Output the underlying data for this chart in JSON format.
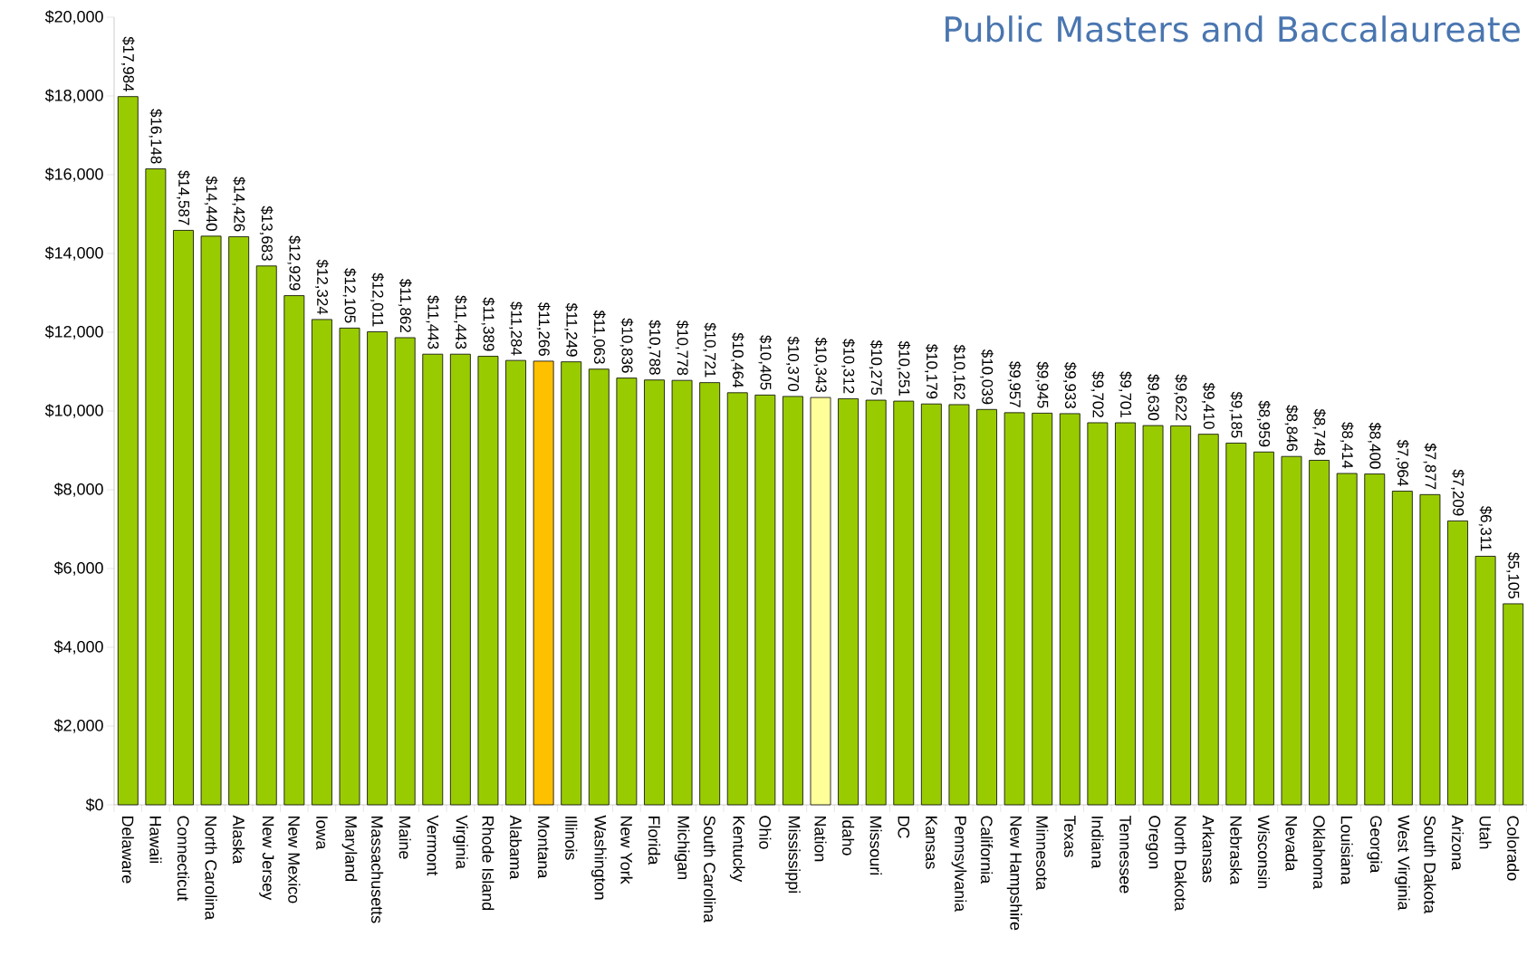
{
  "chart_data": {
    "type": "bar",
    "subtitle": "Public Masters and Baccalaureate",
    "categories": [
      "Delaware",
      "Hawaii",
      "Connecticut",
      "North Carolina",
      "Alaska",
      "New Jersey",
      "New Mexico",
      "Iowa",
      "Maryland",
      "Massachusetts",
      "Maine",
      "Vermont",
      "Virginia",
      "Rhode Island",
      "Alabama",
      "Montana",
      "Illinois",
      "Washington",
      "New York",
      "Florida",
      "Michigan",
      "South Carolina",
      "Kentucky",
      "Ohio",
      "Mississippi",
      "Nation",
      "Idaho",
      "Missouri",
      "DC",
      "Kansas",
      "Pennsylvania",
      "California",
      "New Hampshire",
      "Minnesota",
      "Texas",
      "Indiana",
      "Tennessee",
      "Oregon",
      "North Dakota",
      "Arkansas",
      "Nebraska",
      "Wisconsin",
      "Nevada",
      "Oklahoma",
      "Louisiana",
      "Georgia",
      "West Virginia",
      "South Dakota",
      "Arizona",
      "Utah",
      "Colorado"
    ],
    "values": [
      17984,
      16148,
      14587,
      14440,
      14426,
      13683,
      12929,
      12324,
      12105,
      12011,
      11862,
      11443,
      11443,
      11389,
      11284,
      11266,
      11249,
      11063,
      10836,
      10788,
      10778,
      10721,
      10464,
      10405,
      10370,
      10343,
      10312,
      10275,
      10251,
      10179,
      10162,
      10039,
      9957,
      9945,
      9933,
      9702,
      9701,
      9630,
      9622,
      9410,
      9185,
      8959,
      8846,
      8748,
      8414,
      8400,
      7964,
      7877,
      7209,
      6311,
      5105
    ],
    "value_labels": [
      "$17,984",
      "$16,148",
      "$14,587",
      "$14,440",
      "$14,426",
      "$13,683",
      "$12,929",
      "$12,324",
      "$12,105",
      "$12,011",
      "$11,862",
      "$11,443",
      "$11,443",
      "$11,389",
      "$11,284",
      "$11,266",
      "$11,249",
      "$11,063",
      "$10,836",
      "$10,788",
      "$10,778",
      "$10,721",
      "$10,464",
      "$10,405",
      "$10,370",
      "$10,343",
      "$10,312",
      "$10,275",
      "$10,251",
      "$10,179",
      "$10,162",
      "$10,039",
      "$9,957",
      "$9,945",
      "$9,933",
      "$9,702",
      "$9,701",
      "$9,630",
      "$9,622",
      "$9,410",
      "$9,185",
      "$8,959",
      "$8,846",
      "$8,748",
      "$8,414",
      "$8,400",
      "$7,964",
      "$7,877",
      "$7,209",
      "$6,311",
      "$5,105"
    ],
    "colors": [
      "#99cc00",
      "#99cc00",
      "#99cc00",
      "#99cc00",
      "#99cc00",
      "#99cc00",
      "#99cc00",
      "#99cc00",
      "#99cc00",
      "#99cc00",
      "#99cc00",
      "#99cc00",
      "#99cc00",
      "#99cc00",
      "#99cc00",
      "#ffc000",
      "#99cc00",
      "#99cc00",
      "#99cc00",
      "#99cc00",
      "#99cc00",
      "#99cc00",
      "#99cc00",
      "#99cc00",
      "#99cc00",
      "#ffff99",
      "#99cc00",
      "#99cc00",
      "#99cc00",
      "#99cc00",
      "#99cc00",
      "#99cc00",
      "#99cc00",
      "#99cc00",
      "#99cc00",
      "#99cc00",
      "#99cc00",
      "#99cc00",
      "#99cc00",
      "#99cc00",
      "#99cc00",
      "#99cc00",
      "#99cc00",
      "#99cc00",
      "#99cc00",
      "#99cc00",
      "#99cc00",
      "#99cc00",
      "#99cc00",
      "#99cc00",
      "#99cc00"
    ],
    "ylim": [
      0,
      20000
    ],
    "yticks": [
      {
        "value": 0,
        "label": "$0"
      },
      {
        "value": 2000,
        "label": "$2,000"
      },
      {
        "value": 4000,
        "label": "$4,000"
      },
      {
        "value": 6000,
        "label": "$6,000"
      },
      {
        "value": 8000,
        "label": "$8,000"
      },
      {
        "value": 10000,
        "label": "$10,000"
      },
      {
        "value": 12000,
        "label": "$12,000"
      },
      {
        "value": 14000,
        "label": "$14,000"
      },
      {
        "value": 16000,
        "label": "$16,000"
      },
      {
        "value": 18000,
        "label": "$18,000"
      },
      {
        "value": 20000,
        "label": "$20,000"
      }
    ]
  }
}
